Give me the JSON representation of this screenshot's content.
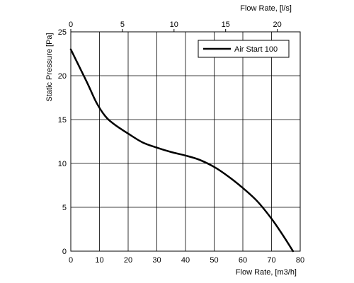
{
  "chart_data": {
    "type": "line",
    "xlabel": "Flow Rate, [m3/h]",
    "ylabel": "Static Pressure [Pa]",
    "x2label": "Flow Rate, [l/s]",
    "xlim": [
      0,
      80
    ],
    "ylim": [
      0,
      25
    ],
    "x2lim": [
      0,
      22.222
    ],
    "xticks": [
      "0",
      "10",
      "20",
      "30",
      "40",
      "50",
      "60",
      "70",
      "80"
    ],
    "yticks": [
      "0",
      "5",
      "10",
      "15",
      "20",
      "25"
    ],
    "x2ticks": [
      "0",
      "5",
      "10",
      "15",
      "20"
    ],
    "grid": true,
    "legend_position": "top-right",
    "series": [
      {
        "name": "Air Start 100",
        "color": "#000000",
        "x": [
          0,
          3,
          6,
          9,
          12,
          15,
          20,
          25,
          30,
          35,
          40,
          45,
          50,
          55,
          60,
          65,
          70,
          74,
          77.5
        ],
        "y": [
          23,
          21,
          19,
          16.9,
          15.4,
          14.5,
          13.4,
          12.4,
          11.8,
          11.3,
          10.9,
          10.4,
          9.6,
          8.5,
          7.2,
          5.7,
          3.7,
          1.8,
          0
        ]
      }
    ]
  }
}
